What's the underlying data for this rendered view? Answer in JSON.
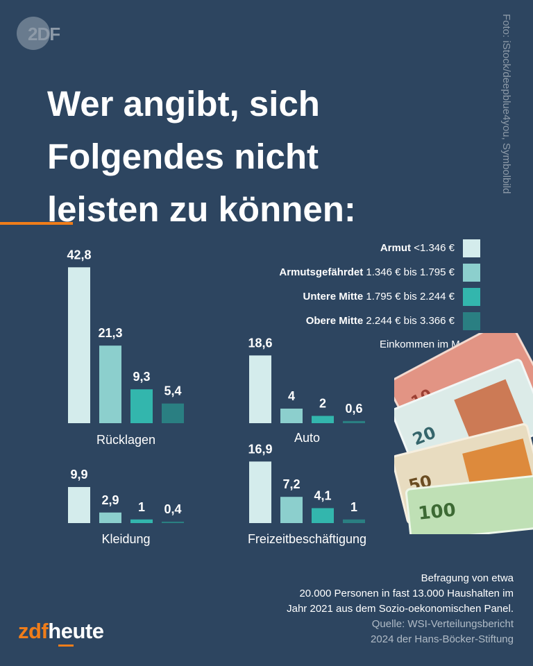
{
  "logo": {
    "text": "2DF"
  },
  "photo_credit": "Foto: iStock/deepblue4you, Symbolbild",
  "title_lines": [
    "Wer angibt, sich",
    "Folgendes nicht",
    "leisten zu können:"
  ],
  "colors": {
    "background": "#2d4560",
    "accent": "#f07d1a",
    "armut": "#d4ecec",
    "armutsgefaehrdet": "#8ccfcd",
    "untere_mitte": "#33b6ad",
    "obere_mitte": "#2a7f82"
  },
  "legend": {
    "items": [
      {
        "name": "Armut",
        "range": "<1.346 €"
      },
      {
        "name": "Armutsgefährdet",
        "range": "1.346 € bis 1.795 €"
      },
      {
        "name": "Untere Mitte",
        "range": "1.795 € bis 2.244 €"
      },
      {
        "name": "Obere Mitte",
        "range": "2.244 € bis 3.366 €"
      }
    ],
    "note": "Einkommen im Monat"
  },
  "chart_data": [
    {
      "type": "bar",
      "title": "Rücklagen",
      "categories": [
        "Armut",
        "Armutsgefährdet",
        "Untere Mitte",
        "Obere Mitte"
      ],
      "values": [
        42.8,
        21.3,
        9.3,
        5.4
      ],
      "labels": [
        "42,8",
        "21,3",
        "9,3",
        "5,4"
      ]
    },
    {
      "type": "bar",
      "title": "Auto",
      "categories": [
        "Armut",
        "Armutsgefährdet",
        "Untere Mitte",
        "Obere Mitte"
      ],
      "values": [
        18.6,
        4,
        2,
        0.6
      ],
      "labels": [
        "18,6",
        "4",
        "2",
        "0,6"
      ]
    },
    {
      "type": "bar",
      "title": "Kleidung",
      "categories": [
        "Armut",
        "Armutsgefährdet",
        "Untere Mitte",
        "Obere Mitte"
      ],
      "values": [
        9.9,
        2.9,
        1,
        0.4
      ],
      "labels": [
        "9,9",
        "2,9",
        "1",
        "0,4"
      ]
    },
    {
      "type": "bar",
      "title": "Freizeitbeschäftigung",
      "categories": [
        "Armut",
        "Armutsgefährdet",
        "Untere Mitte",
        "Obere Mitte"
      ],
      "values": [
        16.9,
        7.2,
        4.1,
        1
      ],
      "labels": [
        "16,9",
        "7,2",
        "4,1",
        "1"
      ]
    }
  ],
  "footnote": {
    "lines": [
      "Befragung von etwa",
      "20.000 Personen in fast 13.000 Haushalten im",
      "Jahr 2021 aus dem Sozio-oekonomischen Panel."
    ],
    "source_lines": [
      "Quelle: WSI-Verteilungsbericht",
      "2024 der Hans-Böcker-Stiftung"
    ]
  },
  "brand": {
    "part1": "zdf",
    "part2": "heute"
  },
  "money_icon": "euro-banknotes"
}
